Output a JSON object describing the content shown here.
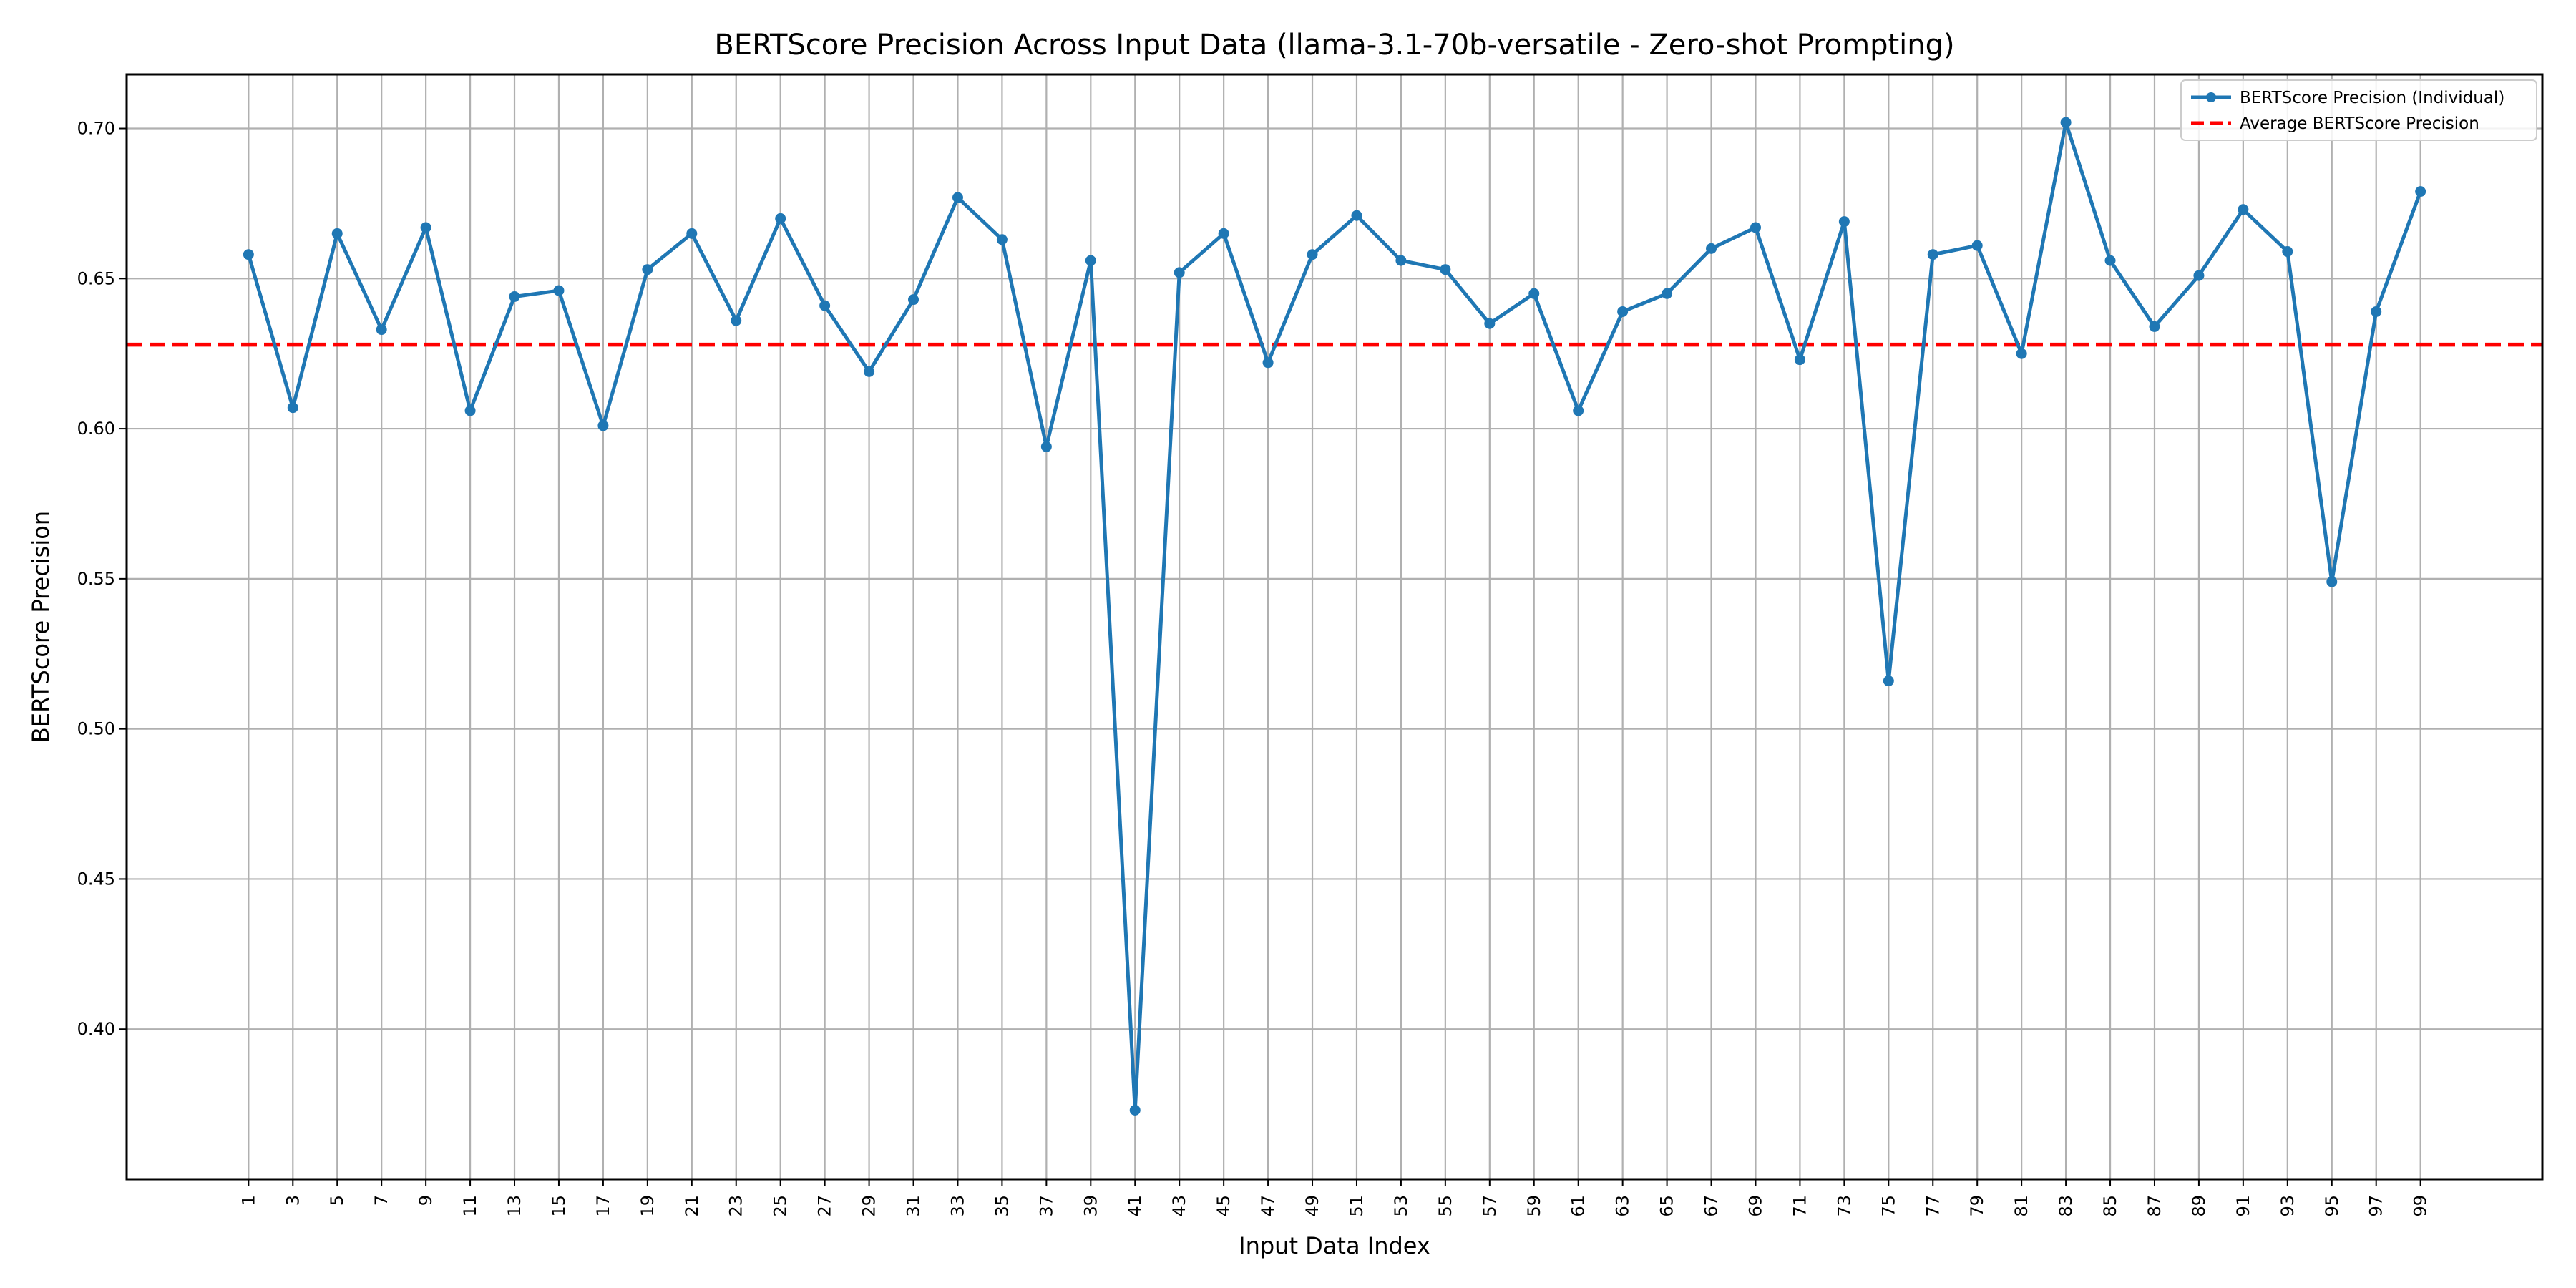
{
  "chart_data": {
    "type": "line",
    "title": "BERTScore Precision Across Input Data (llama-3.1-70b-versatile - Zero-shot Prompting)",
    "xlabel": "Input Data Index",
    "ylabel": "BERTScore Precision",
    "x": [
      1,
      3,
      5,
      7,
      9,
      11,
      13,
      15,
      17,
      19,
      21,
      23,
      25,
      27,
      29,
      31,
      33,
      35,
      37,
      39,
      41,
      43,
      45,
      47,
      49,
      51,
      53,
      55,
      57,
      59,
      61,
      63,
      65,
      67,
      69,
      71,
      73,
      75,
      77,
      79,
      81,
      83,
      85,
      87,
      89,
      91,
      93,
      95,
      97,
      99
    ],
    "xlim": [
      -4.5,
      104.5
    ],
    "ylim": [
      0.35,
      0.718
    ],
    "yticks": [
      "0.40",
      "0.45",
      "0.50",
      "0.55",
      "0.60",
      "0.65",
      "0.70"
    ],
    "grid": true,
    "legend_position": "top-right",
    "series": [
      {
        "name": "BERTScore Precision (Individual)",
        "color": "#1f77b4",
        "marker": "circle",
        "values": [
          0.658,
          0.607,
          0.665,
          0.633,
          0.667,
          0.606,
          0.644,
          0.646,
          0.601,
          0.653,
          0.665,
          0.636,
          0.67,
          0.641,
          0.619,
          0.643,
          0.677,
          0.663,
          0.594,
          0.656,
          0.373,
          0.652,
          0.665,
          0.622,
          0.658,
          0.671,
          0.656,
          0.653,
          0.635,
          0.645,
          0.606,
          0.639,
          0.645,
          0.66,
          0.667,
          0.623,
          0.669,
          0.516,
          0.658,
          0.661,
          0.625,
          0.702,
          0.656,
          0.634,
          0.651,
          0.673,
          0.659,
          0.549,
          0.639,
          0.679
        ]
      },
      {
        "name": "Average BERTScore Precision",
        "color": "#ff0000",
        "style": "dashed",
        "value": 0.628
      }
    ]
  }
}
